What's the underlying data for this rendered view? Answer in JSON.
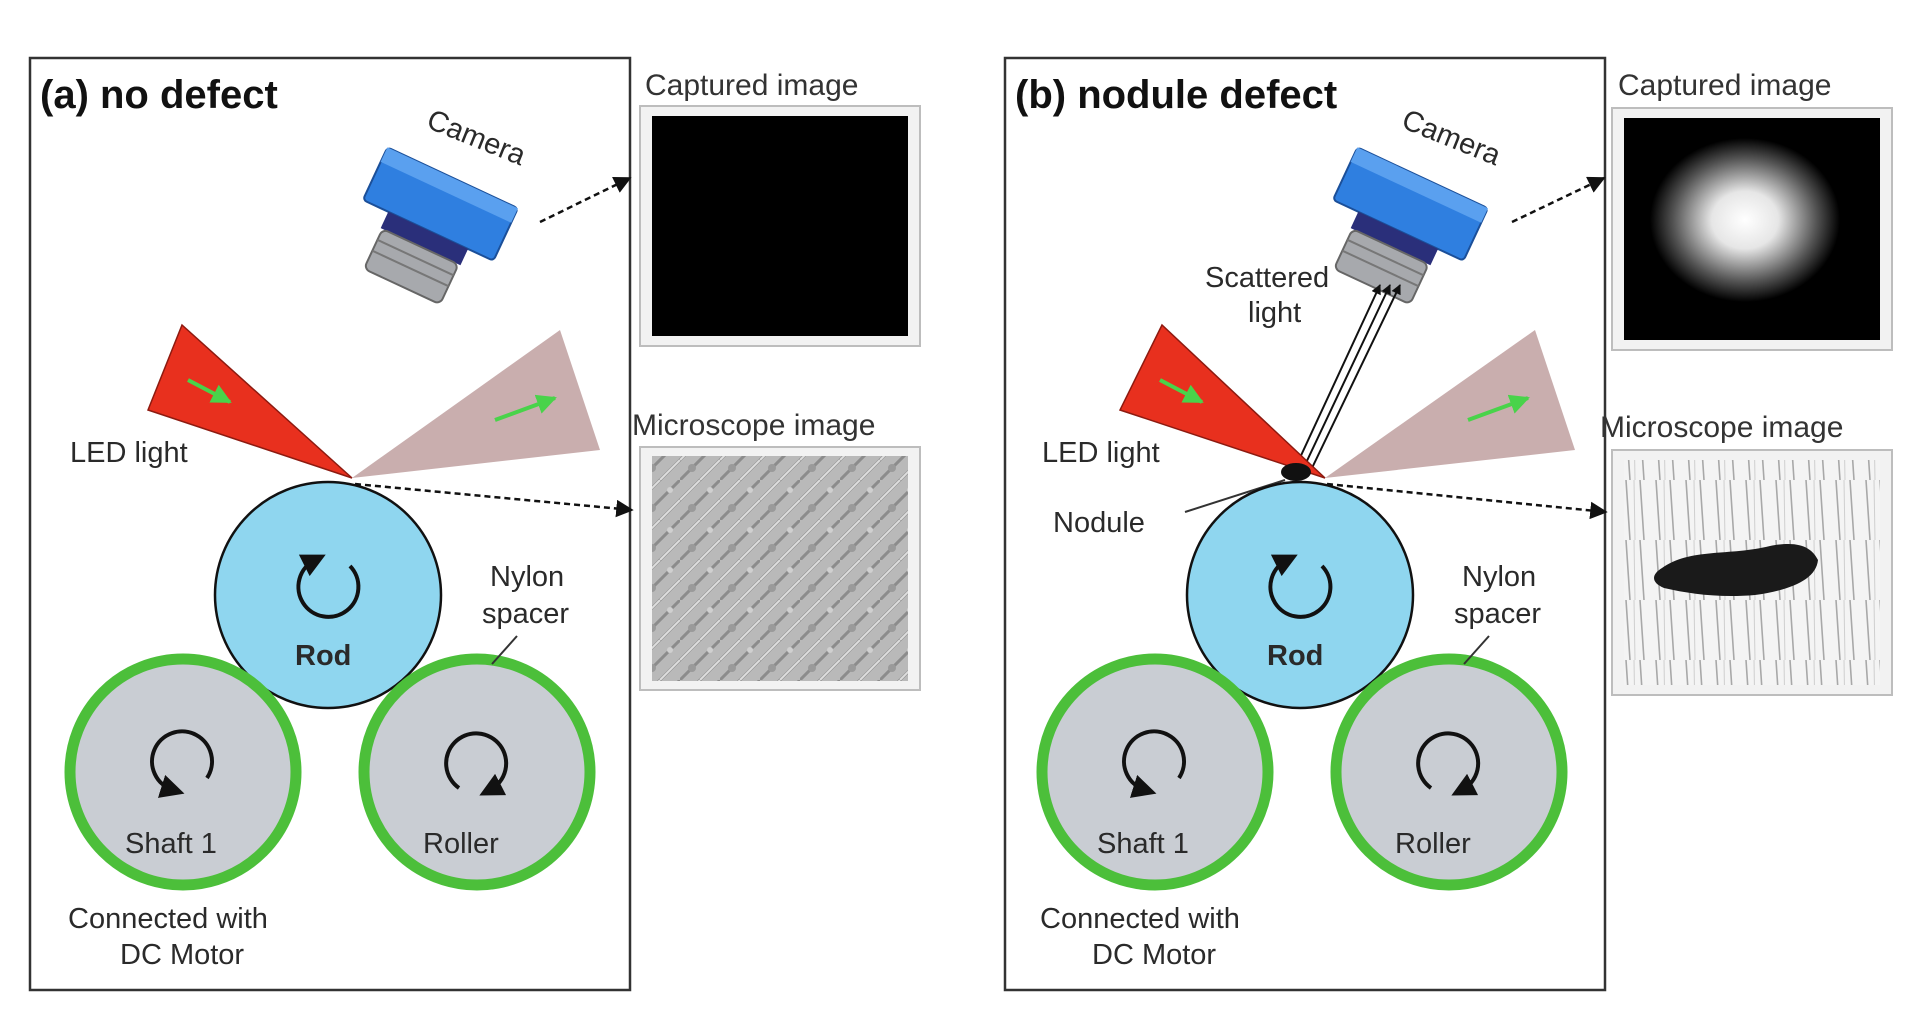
{
  "panels": [
    {
      "title": "(a) no defect",
      "camera": "Camera",
      "led": "LED light",
      "rod": "Rod",
      "shaft": "Shaft 1",
      "roller": "Roller",
      "spacer_line1": "Nylon",
      "spacer_line2": "spacer",
      "motor_line1": "Connected with",
      "motor_line2": "DC Motor",
      "captured_title": "Captured image",
      "microscope_title": "Microscope image"
    },
    {
      "title": "(b) nodule defect",
      "camera": "Camera",
      "led": "LED light",
      "rod": "Rod",
      "shaft": "Shaft 1",
      "roller": "Roller",
      "spacer_line1": "Nylon",
      "spacer_line2": "spacer",
      "motor_line1": "Connected with",
      "motor_line2": "DC Motor",
      "captured_title": "Captured image",
      "microscope_title": "Microscope image",
      "scattered_line1": "Scattered",
      "scattered_line2": "light",
      "nodule": "Nodule"
    }
  ],
  "colors": {
    "camera_body": "#2f7fe0",
    "led_beam": "#e8301e",
    "reflected_beam": "#c9aeae",
    "rod": "#8fd6ef",
    "roller_fill": "#c9cdd3",
    "roller_ring": "#4cbf3a"
  }
}
